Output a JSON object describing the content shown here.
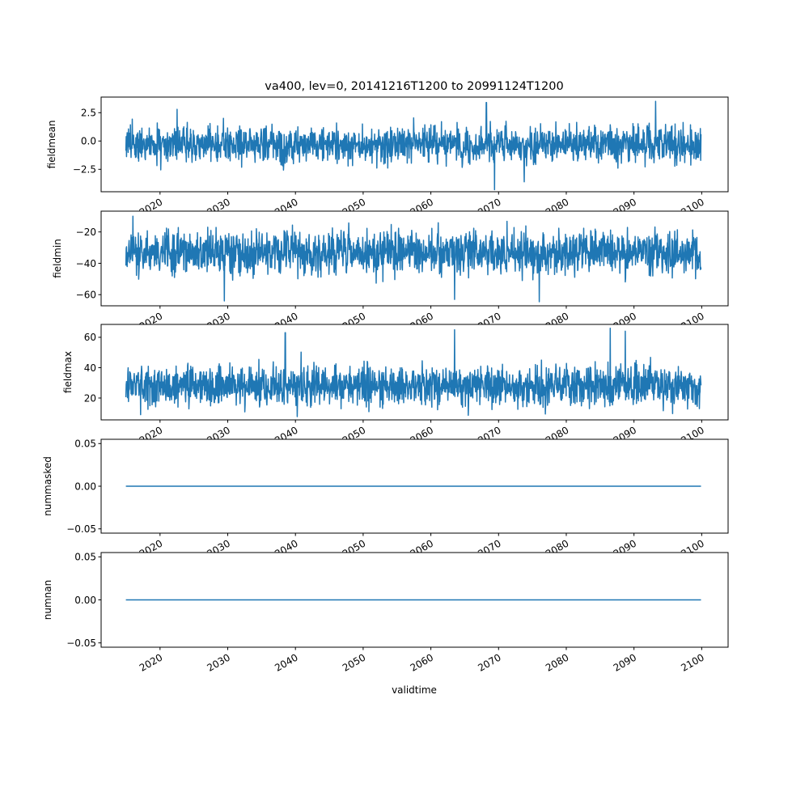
{
  "chart_data": {
    "type": "line",
    "title": "va400, lev=0, 20141216T1200 to 20991124T1200",
    "xlabel": "validtime",
    "x_range": [
      2014.96,
      2099.9
    ],
    "xlim": [
      2011.3,
      2103.9
    ],
    "x_ticks": [
      2020,
      2030,
      2040,
      2050,
      2060,
      2070,
      2080,
      2090,
      2100
    ],
    "x_tick_labels": [
      "2020",
      "2030",
      "2040",
      "2050",
      "2060",
      "2070",
      "2080",
      "2090",
      "2100"
    ],
    "color": "#1f77b4",
    "subplots": [
      {
        "ylabel": "fieldmean",
        "ylim": [
          -4.48,
          3.88
        ],
        "y_ticks": [
          -2.5,
          0.0,
          2.5
        ],
        "y_tick_labels": [
          "−2.5",
          "0.0",
          "2.5"
        ],
        "mean": -0.3,
        "typical_range": [
          -2.4,
          1.9
        ],
        "extremes": [
          [
            2068.2,
            3.4
          ],
          [
            2093.2,
            3.5
          ],
          [
            2069.4,
            -4.3
          ],
          [
            2073.8,
            -3.6
          ],
          [
            2022.5,
            2.8
          ]
        ]
      },
      {
        "ylabel": "fieldmin",
        "ylim": [
          -67.1,
          -6.75
        ],
        "y_ticks": [
          -60,
          -40,
          -20
        ],
        "y_tick_labels": [
          "−60",
          "−40",
          "−20"
        ],
        "mean": -33,
        "typical_range": [
          -52,
          -15
        ],
        "extremes": [
          [
            2029.5,
            -64
          ],
          [
            2076,
            -64.5
          ],
          [
            2063.5,
            -63
          ],
          [
            2016,
            -10
          ]
        ]
      },
      {
        "ylabel": "fieldmax",
        "ylim": [
          5.6,
          68.5
        ],
        "y_ticks": [
          20,
          40,
          60
        ],
        "y_tick_labels": [
          "20",
          "40",
          "60"
        ],
        "mean": 28,
        "typical_range": [
          12,
          48
        ],
        "extremes": [
          [
            2086.5,
            66
          ],
          [
            2063.5,
            65
          ],
          [
            2038.5,
            63
          ],
          [
            2088.7,
            64
          ]
        ]
      },
      {
        "ylabel": "nummasked",
        "ylim": [
          -0.055,
          0.055
        ],
        "y_ticks": [
          -0.05,
          0.0,
          0.05
        ],
        "y_tick_labels": [
          "−0.05",
          "0.00",
          "0.05"
        ],
        "constant": 0.0
      },
      {
        "ylabel": "numnan",
        "ylim": [
          -0.055,
          0.055
        ],
        "y_ticks": [
          -0.05,
          0.0,
          0.05
        ],
        "y_tick_labels": [
          "−0.05",
          "0.00",
          "0.05"
        ],
        "constant": 0.0
      }
    ]
  }
}
